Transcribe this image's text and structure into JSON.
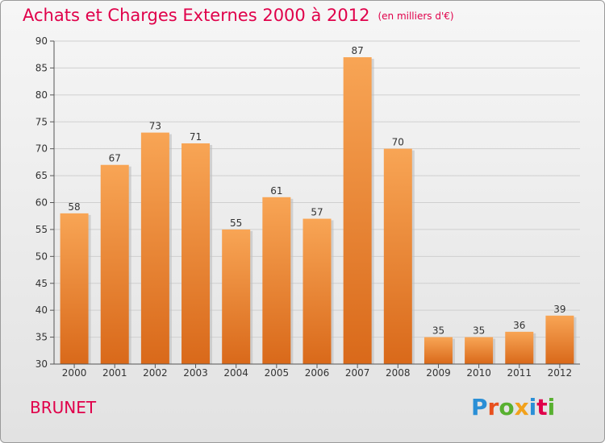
{
  "header": {
    "title": "Achats et Charges Externes 2000 à 2012",
    "unit": "(en milliers d'€)"
  },
  "commune": "BRUNET",
  "logo": {
    "text": "Proxiti",
    "letters": [
      {
        "ch": "P",
        "color": "#2a8fd6"
      },
      {
        "ch": "r",
        "color": "#e8501e"
      },
      {
        "ch": "o",
        "color": "#58b030"
      },
      {
        "ch": "x",
        "color": "#f2a11b"
      },
      {
        "ch": "i",
        "color": "#2a8fd6"
      },
      {
        "ch": "t",
        "color": "#e0004a"
      },
      {
        "ch": "i",
        "color": "#58b030"
      }
    ]
  },
  "colors": {
    "accent": "#e0004a",
    "bar_top": "#f8a555",
    "bar_bottom": "#d9691a",
    "axis": "#555555",
    "grid": "#cfcfcf"
  },
  "chart_data": {
    "type": "bar",
    "categories": [
      "2000",
      "2001",
      "2002",
      "2003",
      "2004",
      "2005",
      "2006",
      "2007",
      "2008",
      "2009",
      "2010",
      "2011",
      "2012"
    ],
    "values": [
      58,
      67,
      73,
      71,
      55,
      61,
      57,
      87,
      70,
      35,
      35,
      36,
      39
    ],
    "ylim": [
      30,
      90
    ],
    "yticks": [
      30,
      35,
      40,
      45,
      50,
      55,
      60,
      65,
      70,
      75,
      80,
      85,
      90
    ],
    "grid": true,
    "legend": "none"
  }
}
